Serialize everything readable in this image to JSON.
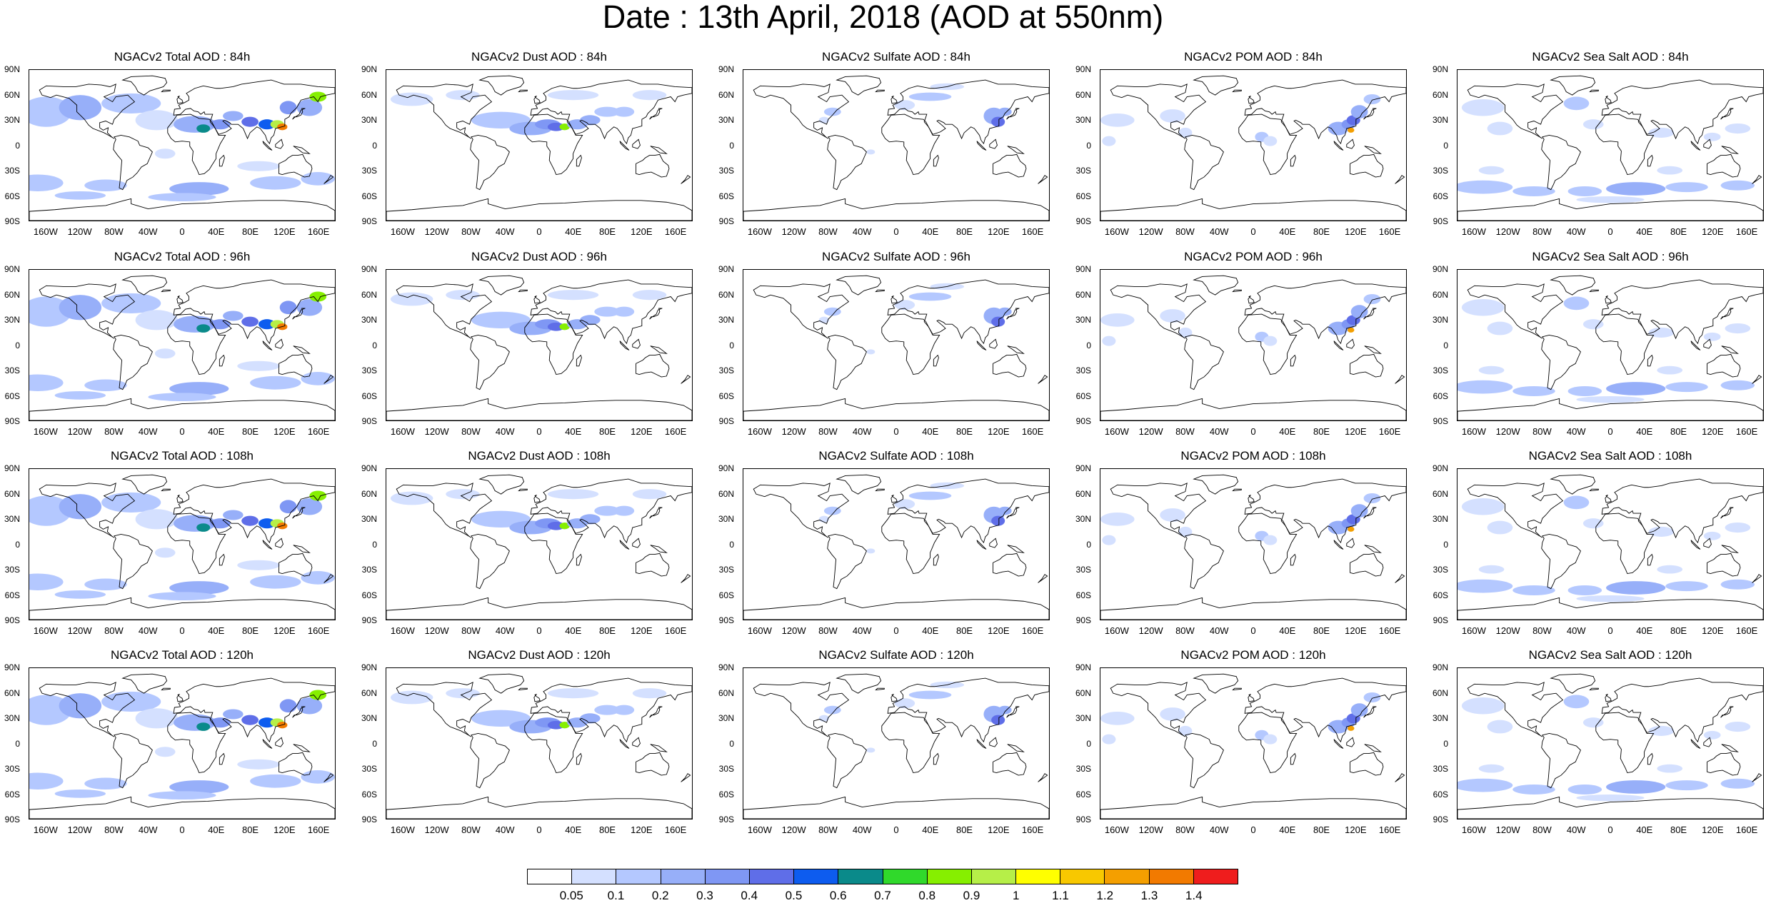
{
  "title": "Date : 13th April, 2018 (AOD at 550nm)",
  "lat_ticks": [
    "90N",
    "60N",
    "30N",
    "0",
    "30S",
    "60S",
    "90S"
  ],
  "lon_ticks": [
    "160W",
    "120W",
    "80W",
    "40W",
    "0",
    "40E",
    "80E",
    "120E",
    "160E"
  ],
  "lon_tick_values": [
    -160,
    -120,
    -80,
    -40,
    0,
    40,
    80,
    120,
    160
  ],
  "panels": [
    {
      "title": "NGACv2 Total AOD : 84h",
      "field": "total"
    },
    {
      "title": "NGACv2 Dust AOD : 84h",
      "field": "dust"
    },
    {
      "title": "NGACv2 Sulfate AOD : 84h",
      "field": "sulfate"
    },
    {
      "title": "NGACv2 POM AOD : 84h",
      "field": "pom"
    },
    {
      "title": "NGACv2 Sea Salt AOD : 84h",
      "field": "seasalt"
    },
    {
      "title": "NGACv2 Total AOD : 96h",
      "field": "total"
    },
    {
      "title": "NGACv2 Dust AOD : 96h",
      "field": "dust"
    },
    {
      "title": "NGACv2 Sulfate AOD : 96h",
      "field": "sulfate"
    },
    {
      "title": "NGACv2 POM AOD : 96h",
      "field": "pom"
    },
    {
      "title": "NGACv2 Sea Salt AOD : 96h",
      "field": "seasalt"
    },
    {
      "title": "NGACv2 Total AOD : 108h",
      "field": "total"
    },
    {
      "title": "NGACv2 Dust AOD : 108h",
      "field": "dust"
    },
    {
      "title": "NGACv2 Sulfate AOD : 108h",
      "field": "sulfate"
    },
    {
      "title": "NGACv2 POM AOD : 108h",
      "field": "pom"
    },
    {
      "title": "NGACv2 Sea Salt AOD : 108h",
      "field": "seasalt"
    },
    {
      "title": "NGACv2 Total AOD : 120h",
      "field": "total"
    },
    {
      "title": "NGACv2 Dust AOD : 120h",
      "field": "dust"
    },
    {
      "title": "NGACv2 Sulfate AOD : 120h",
      "field": "sulfate"
    },
    {
      "title": "NGACv2 POM AOD : 120h",
      "field": "pom"
    },
    {
      "title": "NGACv2 Sea Salt  AOD : 120h",
      "field": "seasalt"
    }
  ],
  "colorbar": {
    "colors": [
      "#ffffff",
      "#d4e0ff",
      "#b4c8ff",
      "#97aff9",
      "#7f97f4",
      "#5f6ee8",
      "#0d5cef",
      "#0a8a8a",
      "#30d92b",
      "#86ef00",
      "#b6ef48",
      "#ffff00",
      "#f8c800",
      "#f49f00",
      "#f27a00",
      "#ef1d1d"
    ],
    "labels": [
      "0.05",
      "0.1",
      "0.2",
      "0.3",
      "0.4",
      "0.5",
      "0.6",
      "0.7",
      "0.8",
      "0.9",
      "1",
      "1.1",
      "1.2",
      "1.3",
      "1.4"
    ]
  }
}
